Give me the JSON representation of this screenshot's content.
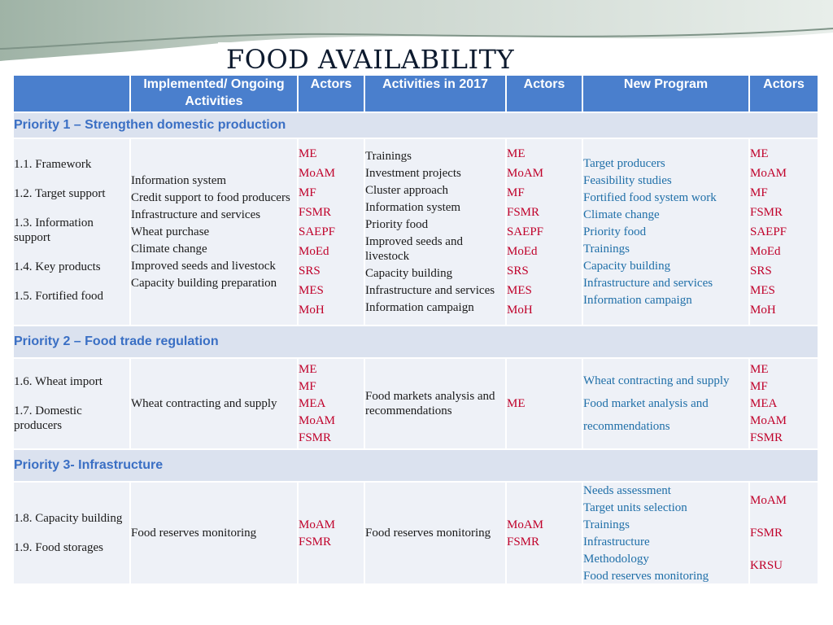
{
  "title": "FOOD AVAILABILITY",
  "headers": [
    "",
    "Implemented/ Ongoing Activities",
    "Actors",
    "Activities in 2017",
    "Actors",
    "New Program",
    "Actors"
  ],
  "sections": [
    {
      "priority": "Priority 1 – Strengthen domestic production",
      "goals": [
        "1.1. Framework",
        "1.2. Target support",
        "1.3. Information support",
        "1.4. Key products",
        "1.5. Fortified food"
      ],
      "ongoing": [
        "Information system",
        "Credit support to food producers",
        "Infrastructure and services",
        "Wheat purchase",
        "Climate change",
        "Improved seeds and livestock",
        "Capacity building preparation"
      ],
      "actors1": [
        "ME",
        "MoAM",
        "MF",
        "FSMR",
        "SAEPF",
        "MoEd",
        "SRS",
        "MES",
        "MoH"
      ],
      "activities2017": [
        "Trainings",
        "Investment projects",
        "Cluster approach",
        "Information system",
        "Priority food",
        "Improved seeds and livestock",
        "Capacity building",
        "Infrastructure and services",
        "Information campaign"
      ],
      "actors2": [
        "ME",
        "MoAM",
        "MF",
        "FSMR",
        "SAEPF",
        "MoEd",
        "SRS",
        "MES",
        "MoH"
      ],
      "new_program": [
        "Target producers",
        "Feasibility studies",
        "Fortified food system work",
        "Climate change",
        "Priority food",
        "Trainings",
        "Capacity building",
        "Infrastructure and services",
        "Information campaign"
      ],
      "actors3": [
        "ME",
        "MoAM",
        "MF",
        "FSMR",
        "SAEPF",
        "MoEd",
        "SRS",
        "MES",
        "MoH"
      ]
    },
    {
      "priority": "Priority 2 – Food trade regulation",
      "goals": [
        "1.6. Wheat import",
        "1.7. Domestic producers"
      ],
      "ongoing": [
        "Wheat contracting and supply"
      ],
      "actors1": [
        "ME",
        "MF",
        "MEA",
        "MoAM",
        "FSMR"
      ],
      "activities2017": [
        "Food markets analysis and recommendations"
      ],
      "actors2": [
        "ME"
      ],
      "new_program": [
        "Wheat contracting and supply",
        "Food market analysis and recommendations"
      ],
      "actors3": [
        "ME",
        "MF",
        "MEA",
        "MoAM",
        "FSMR"
      ]
    },
    {
      "priority": "Priority 3- Infrastructure",
      "goals": [
        "1.8. Capacity building",
        "1.9. Food storages"
      ],
      "ongoing": [
        "Food reserves monitoring"
      ],
      "actors1": [
        "MoAM",
        "FSMR"
      ],
      "activities2017": [
        "Food reserves monitoring"
      ],
      "actors2": [
        "MoAM",
        "FSMR"
      ],
      "new_program": [
        "Needs assessment",
        "Target units selection",
        "Trainings",
        "Infrastructure",
        "Methodology",
        "Food reserves monitoring"
      ],
      "actors3": [
        "MoAM",
        "FSMR",
        "KRSU"
      ]
    }
  ],
  "colors": {
    "header_bg": "#4a7fcd",
    "priority_bg": "#dbe2ef",
    "cell_bg": "#eef1f7",
    "actor_red": "#c0002a",
    "program_blue": "#1f6fa8"
  }
}
